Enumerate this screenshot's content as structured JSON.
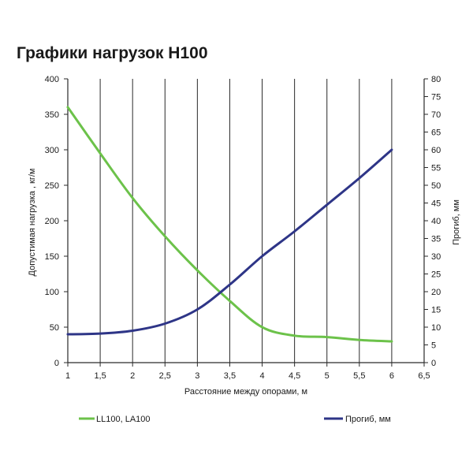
{
  "chart_data": {
    "type": "line",
    "title": "Графики нагрузок H100",
    "xlabel": "Расстояние между опорами, м",
    "ylabel_left": "Допустимая нагрузка , кг/м",
    "ylabel_right": "Прогиб, мм",
    "xlim": [
      1,
      6.5
    ],
    "ylim_left": [
      0,
      400
    ],
    "ylim_right": [
      0,
      80
    ],
    "x_ticks": [
      "1",
      "1,5",
      "2",
      "2,5",
      "3",
      "3,5",
      "4",
      "4,5",
      "5",
      "5,5",
      "6",
      "6,5"
    ],
    "y_left_ticks": [
      "0",
      "50",
      "100",
      "150",
      "200",
      "250",
      "300",
      "350",
      "400"
    ],
    "y_right_ticks": [
      "0",
      "5",
      "10",
      "15",
      "20",
      "25",
      "30",
      "35",
      "40",
      "45",
      "50",
      "55",
      "60",
      "65",
      "70",
      "75",
      "80"
    ],
    "grid": "vertical",
    "series": [
      {
        "name": "LL100, LA100",
        "axis": "left",
        "color": "#6cc24a",
        "x": [
          1,
          1.5,
          2,
          2.5,
          3,
          3.5,
          4,
          4.5,
          5,
          5.5,
          6
        ],
        "y": [
          360,
          295,
          232,
          178,
          130,
          87,
          50,
          38,
          36,
          32,
          30
        ]
      },
      {
        "name": "Прогиб, мм",
        "axis": "right",
        "color": "#2e3587",
        "x": [
          1,
          1.5,
          2,
          2.5,
          3,
          3.5,
          4,
          4.5,
          5,
          5.5,
          6
        ],
        "y": [
          8,
          8.2,
          9,
          11,
          15,
          22,
          30,
          37,
          44.5,
          52,
          60
        ]
      }
    ]
  }
}
